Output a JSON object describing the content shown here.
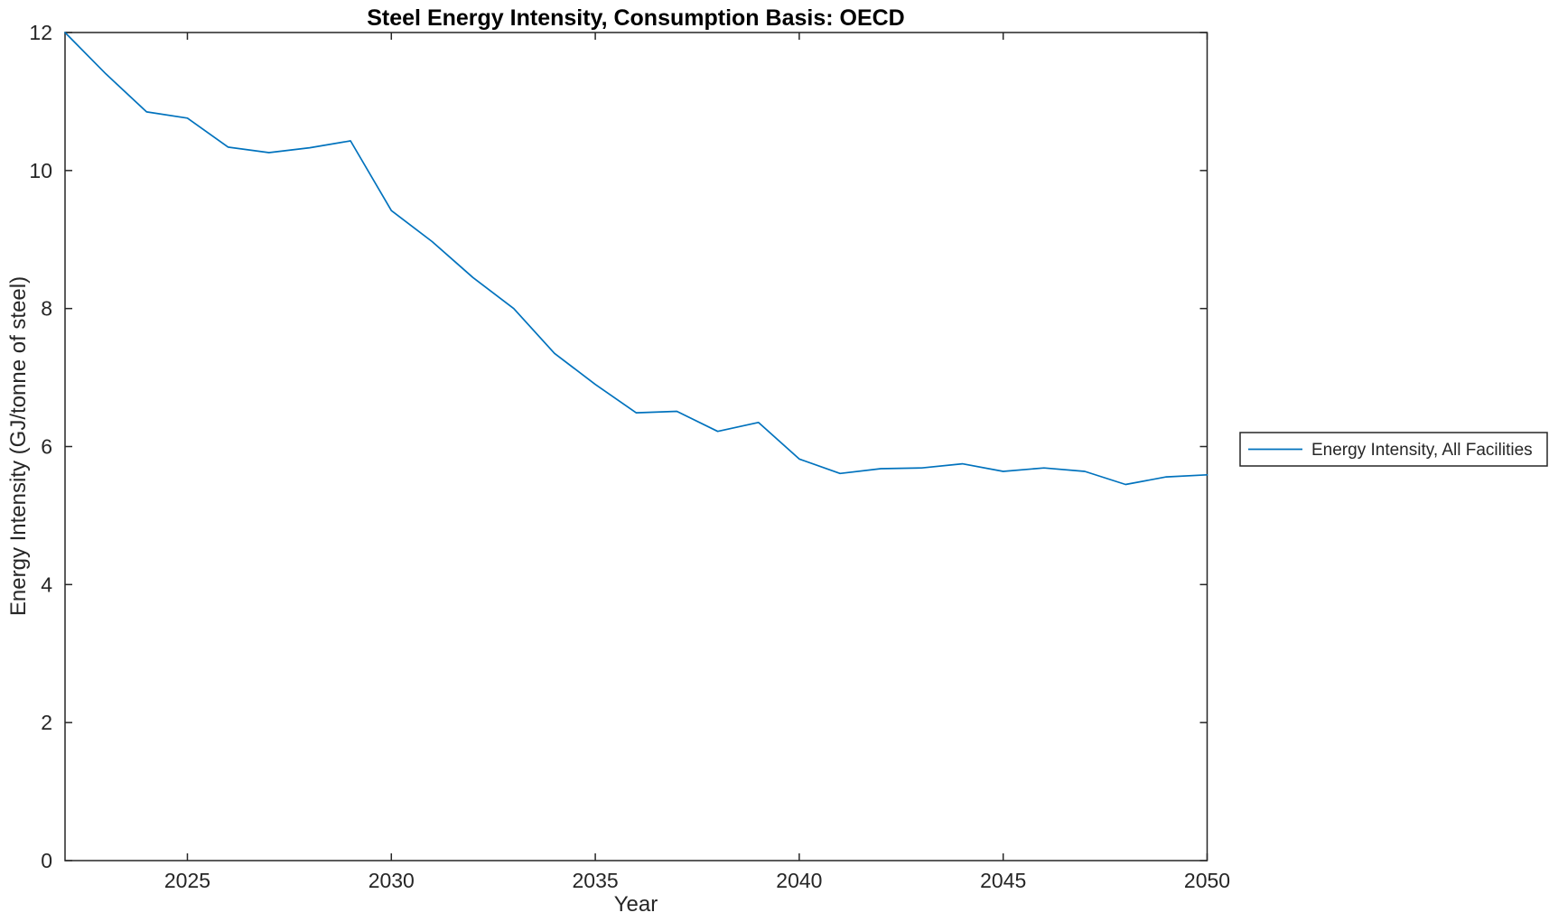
{
  "chart_data": {
    "type": "line",
    "title": "Steel Energy Intensity, Consumption Basis: OECD",
    "xlabel": "Year",
    "ylabel": "Energy Intensity (GJ/tonne of steel)",
    "xlim": [
      2022,
      2050
    ],
    "ylim": [
      0,
      12
    ],
    "xticks": [
      2025,
      2030,
      2035,
      2040,
      2045,
      2050
    ],
    "yticks": [
      0,
      2,
      4,
      6,
      8,
      10,
      12
    ],
    "grid": false,
    "box": true,
    "legend_position": "outside-right",
    "x": [
      2022,
      2023,
      2024,
      2025,
      2026,
      2027,
      2028,
      2029,
      2030,
      2031,
      2032,
      2033,
      2034,
      2035,
      2036,
      2037,
      2038,
      2039,
      2040,
      2041,
      2042,
      2043,
      2044,
      2045,
      2046,
      2047,
      2048,
      2049,
      2050
    ],
    "series": [
      {
        "name": "Energy Intensity, All Facilities",
        "color": "#0072BD",
        "values": [
          12.0,
          11.4,
          10.85,
          10.76,
          10.34,
          10.26,
          10.33,
          10.43,
          9.42,
          8.97,
          8.45,
          8.0,
          7.35,
          6.9,
          6.49,
          6.51,
          6.22,
          6.35,
          5.82,
          5.61,
          5.68,
          5.69,
          5.75,
          5.64,
          5.69,
          5.64,
          5.45,
          5.56,
          5.59
        ]
      }
    ]
  },
  "legend": {
    "entries": [
      {
        "label": "Energy Intensity, All Facilities",
        "color": "#0072BD"
      }
    ]
  },
  "colors": {
    "line": "#0072BD",
    "axis": "#262626",
    "background": "#ffffff"
  }
}
